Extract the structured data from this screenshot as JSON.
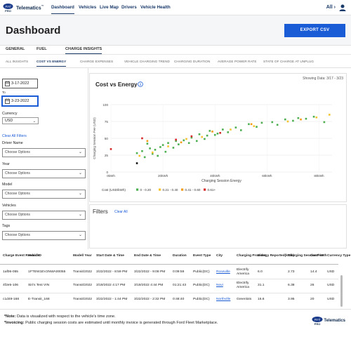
{
  "topbar": {
    "brand": "Telematics",
    "brand_mark": "™",
    "nav": [
      "Dashboard",
      "Vehicles",
      "Live Map",
      "Drivers",
      "Vehicle Health"
    ],
    "account_label": "All",
    "account_chevron": "›"
  },
  "header": {
    "title": "Dashboard",
    "export_label": "EXPORT CSV"
  },
  "tabs": [
    "GENERAL",
    "FUEL",
    "CHARGE INSIGHTS"
  ],
  "subtabs": [
    "ALL INSIGHTS",
    "COST VS ENERGY",
    "CHARGE EXPENSES",
    "VEHICLE CHARGING TREND",
    "CHARGING DURATION",
    "AVERAGE POWER RATE",
    "STATE OF CHARGE AT UNPLUG"
  ],
  "filters": {
    "from_date": "3-17-2022",
    "to_label": "To",
    "to_date": "3-23-2022",
    "currency_label": "Currency",
    "currency_value": "USD",
    "clear_all": "Clear All Filters",
    "driver_label": "Driver Name",
    "year_label": "Year",
    "model_label": "Model",
    "vehicles_label": "Vehicles",
    "tags_label": "Tags",
    "placeholder": "Choose Options"
  },
  "chart_panel": {
    "title": "Cost vs Energy",
    "showing": "Showing Data: 3/17 - 3/23"
  },
  "chart_data": {
    "type": "scatter",
    "title": "",
    "xlabel": "Charging Session Energy",
    "ylabel": "Charging Session Fee (USD)",
    "xlim": [
      0,
      85
    ],
    "ylim": [
      0,
      100
    ],
    "x_ticks": [
      "0kWh",
      "20kWh",
      "40kWh",
      "60kWh",
      "80kWh"
    ],
    "x_tick_values": [
      0,
      20,
      40,
      60,
      80
    ],
    "y_ticks": [
      "0",
      "25",
      "50",
      "75",
      "100"
    ],
    "y_tick_values": [
      0,
      25,
      50,
      75,
      100
    ],
    "legend_title": "Cost (USD/kWh)",
    "legend_placement": "bottom",
    "grid": true,
    "series": [
      {
        "name": "0 - 0.20",
        "color": "#4caf50",
        "points": [
          [
            10,
            28
          ],
          [
            12,
            31
          ],
          [
            13,
            22
          ],
          [
            14,
            42
          ],
          [
            15,
            35
          ],
          [
            16,
            27
          ],
          [
            17,
            33
          ],
          [
            18,
            24
          ],
          [
            19,
            37
          ],
          [
            20,
            40
          ],
          [
            21,
            30
          ],
          [
            22,
            43
          ],
          [
            24,
            36
          ],
          [
            25,
            46
          ],
          [
            26,
            41
          ],
          [
            28,
            47
          ],
          [
            30,
            43
          ],
          [
            31,
            51
          ],
          [
            33,
            46
          ],
          [
            34,
            56
          ],
          [
            36,
            49
          ],
          [
            37,
            54
          ],
          [
            38,
            61
          ],
          [
            40,
            55
          ],
          [
            41,
            57
          ],
          [
            43,
            63
          ],
          [
            45,
            59
          ],
          [
            48,
            66
          ],
          [
            50,
            62
          ],
          [
            53,
            71
          ],
          [
            56,
            67
          ],
          [
            58,
            73
          ],
          [
            62,
            74
          ],
          [
            64,
            70
          ],
          [
            67,
            78
          ],
          [
            70,
            76
          ],
          [
            72,
            80
          ],
          [
            75,
            79
          ],
          [
            78,
            82
          ],
          [
            82,
            74
          ]
        ]
      },
      {
        "name": "0.21 - 0.40",
        "color": "#f4c430",
        "points": [
          [
            11,
            24
          ],
          [
            16,
            29
          ],
          [
            22,
            38
          ],
          [
            29,
            49
          ],
          [
            35,
            52
          ],
          [
            46,
            63
          ],
          [
            55,
            68
          ],
          [
            68,
            75
          ],
          [
            79,
            81
          ],
          [
            84,
            85
          ]
        ]
      },
      {
        "name": "0.41 - 0.60",
        "color": "#f39c12",
        "points": [
          [
            14,
            46
          ],
          [
            27,
            44
          ],
          [
            39,
            60
          ],
          [
            54,
            71
          ],
          [
            73,
            78
          ]
        ]
      },
      {
        "name": "0.61+",
        "color": "#d62828",
        "points": [
          [
            0,
            34
          ],
          [
            12,
            50
          ],
          [
            25,
            48
          ],
          [
            31,
            53
          ],
          [
            42,
            58
          ]
        ]
      }
    ],
    "extra_points": [
      {
        "x": 10,
        "y": 13,
        "color": "#111111"
      }
    ]
  },
  "filters_panel": {
    "title": "Filters",
    "clear": "Clear All"
  },
  "table": {
    "headers": [
      "Charge Event Record ID",
      "Vehicle",
      "Model/ Year",
      "Start Date & Time",
      "End Date & Time",
      "Duration",
      "Event Type",
      "City",
      "Charging Provider",
      "Energy Reported(kWh)",
      "Charging Session Fee",
      "Cost/ kWh",
      "Currency Type"
    ],
    "rows": [
      [
        "1af06-055",
        "1FTEW1EV2NWA00055",
        "Transit/2022",
        "3/22/2022 - 8:59 PM",
        "3/22/2022 - 9:08 PM",
        "0:09:59",
        "Public(DC)",
        "Roseville",
        "Electrify America",
        "6.0",
        "2.73",
        "14.4",
        "USD"
      ],
      [
        "4f2e5-106",
        "Siri's Test VIN",
        "Transit/2022",
        "3/19/2022 4:17 PM",
        "3/19/2022 4:44 PM",
        "01:21:43",
        "Public(DC)",
        "Novi",
        "Electrify America",
        "31.1",
        "6.38",
        "26",
        "USD"
      ],
      [
        "c1d49-168",
        "E-Transit_168",
        "Transit/2022",
        "3/22/2022 - 1:44 PM",
        "3/22/2022 - 2:32 PM",
        "0:48:40",
        "Public(DC)",
        "Northville",
        "Greenlots",
        "16.6",
        "3.95",
        "20",
        "USD"
      ]
    ]
  },
  "footer": {
    "note_label": "*Note:",
    "note_text": "Data is visualized with respect to the vehicle's time zone.",
    "invoicing_label": "*Invoicing:",
    "invoicing_text": "Public charging session costs are estimated until monthly invoice is generated through Ford Fleet Marketplace.",
    "brand": "Telematics"
  }
}
